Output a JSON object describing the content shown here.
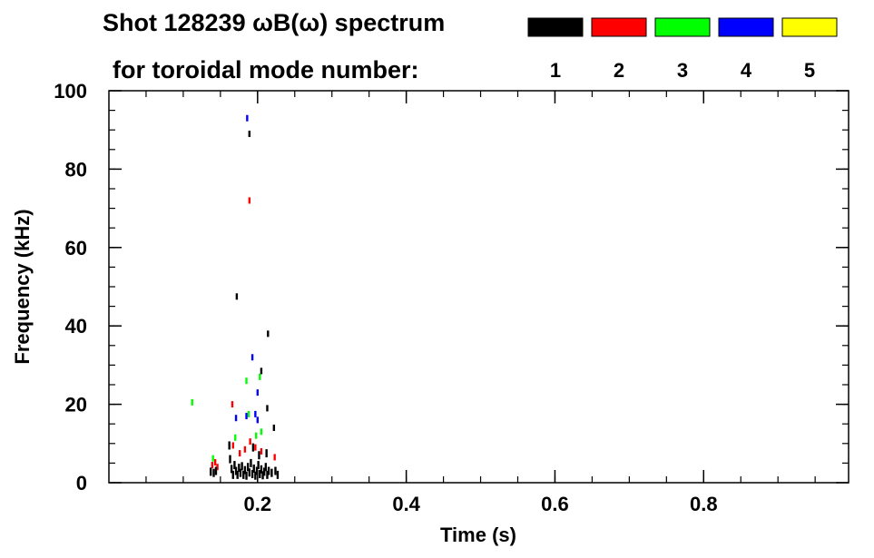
{
  "chart_data": {
    "type": "scatter",
    "title_line1": "Shot 128239 ωB(ω) spectrum",
    "title_line2": "for toroidal mode number:",
    "xlabel": "Time (s)",
    "ylabel": "Frequency (kHz)",
    "xlim": [
      0.0,
      0.995
    ],
    "ylim": [
      0,
      100
    ],
    "x_ticks": [
      0.2,
      0.4,
      0.6,
      0.8
    ],
    "x_tick_labels": [
      "0.2",
      "0.4",
      "0.6",
      "0.8"
    ],
    "y_ticks": [
      0,
      20,
      40,
      60,
      80,
      100
    ],
    "y_tick_labels": [
      "0",
      "20",
      "40",
      "60",
      "80",
      "100"
    ],
    "legend": [
      {
        "label": "1",
        "color": "#000000"
      },
      {
        "label": "2",
        "color": "#ff0000"
      },
      {
        "label": "3",
        "color": "#00ff00"
      },
      {
        "label": "4",
        "color": "#0000ff"
      },
      {
        "label": "5",
        "color": "#ffff00"
      }
    ],
    "points": [
      {
        "t": 0.112,
        "f": 20.5,
        "n": 3
      },
      {
        "t": 0.139,
        "f": 4.5,
        "n": 2
      },
      {
        "t": 0.143,
        "f": 5.2,
        "n": 2
      },
      {
        "t": 0.146,
        "f": 4.0,
        "n": 2
      },
      {
        "t": 0.137,
        "f": 2.8,
        "n": 1
      },
      {
        "t": 0.141,
        "f": 2.5,
        "n": 1
      },
      {
        "t": 0.144,
        "f": 3.0,
        "n": 1
      },
      {
        "t": 0.14,
        "f": 6.2,
        "n": 3
      },
      {
        "t": 0.162,
        "f": 9.5,
        "n": 1
      },
      {
        "t": 0.163,
        "f": 6.0,
        "n": 1
      },
      {
        "t": 0.165,
        "f": 3.5,
        "n": 1
      },
      {
        "t": 0.167,
        "f": 2.0,
        "n": 1
      },
      {
        "t": 0.169,
        "f": 4.5,
        "n": 1
      },
      {
        "t": 0.171,
        "f": 3.0,
        "n": 1
      },
      {
        "t": 0.173,
        "f": 2.0,
        "n": 1
      },
      {
        "t": 0.175,
        "f": 3.8,
        "n": 1
      },
      {
        "t": 0.177,
        "f": 2.5,
        "n": 1
      },
      {
        "t": 0.179,
        "f": 4.2,
        "n": 1
      },
      {
        "t": 0.181,
        "f": 2.0,
        "n": 1
      },
      {
        "t": 0.183,
        "f": 3.2,
        "n": 1
      },
      {
        "t": 0.185,
        "f": 1.8,
        "n": 1
      },
      {
        "t": 0.187,
        "f": 4.0,
        "n": 1
      },
      {
        "t": 0.189,
        "f": 2.6,
        "n": 1
      },
      {
        "t": 0.191,
        "f": 5.0,
        "n": 1
      },
      {
        "t": 0.193,
        "f": 2.2,
        "n": 1
      },
      {
        "t": 0.195,
        "f": 3.6,
        "n": 1
      },
      {
        "t": 0.197,
        "f": 1.8,
        "n": 1
      },
      {
        "t": 0.199,
        "f": 3.0,
        "n": 1
      },
      {
        "t": 0.201,
        "f": 4.5,
        "n": 1
      },
      {
        "t": 0.203,
        "f": 2.2,
        "n": 1
      },
      {
        "t": 0.205,
        "f": 3.4,
        "n": 1
      },
      {
        "t": 0.207,
        "f": 1.9,
        "n": 1
      },
      {
        "t": 0.209,
        "f": 2.8,
        "n": 1
      },
      {
        "t": 0.211,
        "f": 4.0,
        "n": 1
      },
      {
        "t": 0.213,
        "f": 2.0,
        "n": 1
      },
      {
        "t": 0.215,
        "f": 3.0,
        "n": 1
      },
      {
        "t": 0.219,
        "f": 2.5,
        "n": 1
      },
      {
        "t": 0.224,
        "f": 3.0,
        "n": 1
      },
      {
        "t": 0.227,
        "f": 2.0,
        "n": 1
      },
      {
        "t": 0.194,
        "f": 9.0,
        "n": 1
      },
      {
        "t": 0.212,
        "f": 7.5,
        "n": 1
      },
      {
        "t": 0.202,
        "f": 7.0,
        "n": 1
      },
      {
        "t": 0.167,
        "f": 9.5,
        "n": 2
      },
      {
        "t": 0.176,
        "f": 7.5,
        "n": 2
      },
      {
        "t": 0.183,
        "f": 8.5,
        "n": 2
      },
      {
        "t": 0.19,
        "f": 10.5,
        "n": 2
      },
      {
        "t": 0.197,
        "f": 9.0,
        "n": 2
      },
      {
        "t": 0.205,
        "f": 8.0,
        "n": 2
      },
      {
        "t": 0.223,
        "f": 6.5,
        "n": 2
      },
      {
        "t": 0.166,
        "f": 20.0,
        "n": 2
      },
      {
        "t": 0.189,
        "f": 72.0,
        "n": 2
      },
      {
        "t": 0.17,
        "f": 11.5,
        "n": 3
      },
      {
        "t": 0.198,
        "f": 12.0,
        "n": 3
      },
      {
        "t": 0.188,
        "f": 17.5,
        "n": 3
      },
      {
        "t": 0.185,
        "f": 26.0,
        "n": 3
      },
      {
        "t": 0.203,
        "f": 27.0,
        "n": 3
      },
      {
        "t": 0.205,
        "f": 13.0,
        "n": 3
      },
      {
        "t": 0.171,
        "f": 16.5,
        "n": 4
      },
      {
        "t": 0.185,
        "f": 17.0,
        "n": 4
      },
      {
        "t": 0.197,
        "f": 17.5,
        "n": 4
      },
      {
        "t": 0.2,
        "f": 16.0,
        "n": 4
      },
      {
        "t": 0.2,
        "f": 23.0,
        "n": 4
      },
      {
        "t": 0.193,
        "f": 32.0,
        "n": 4
      },
      {
        "t": 0.186,
        "f": 93.0,
        "n": 4
      },
      {
        "t": 0.189,
        "f": 89.0,
        "n": 1
      },
      {
        "t": 0.172,
        "f": 47.5,
        "n": 1
      },
      {
        "t": 0.214,
        "f": 38.0,
        "n": 1
      },
      {
        "t": 0.205,
        "f": 28.5,
        "n": 1
      },
      {
        "t": 0.213,
        "f": 19.0,
        "n": 1
      },
      {
        "t": 0.222,
        "f": 14.0,
        "n": 1
      }
    ]
  }
}
